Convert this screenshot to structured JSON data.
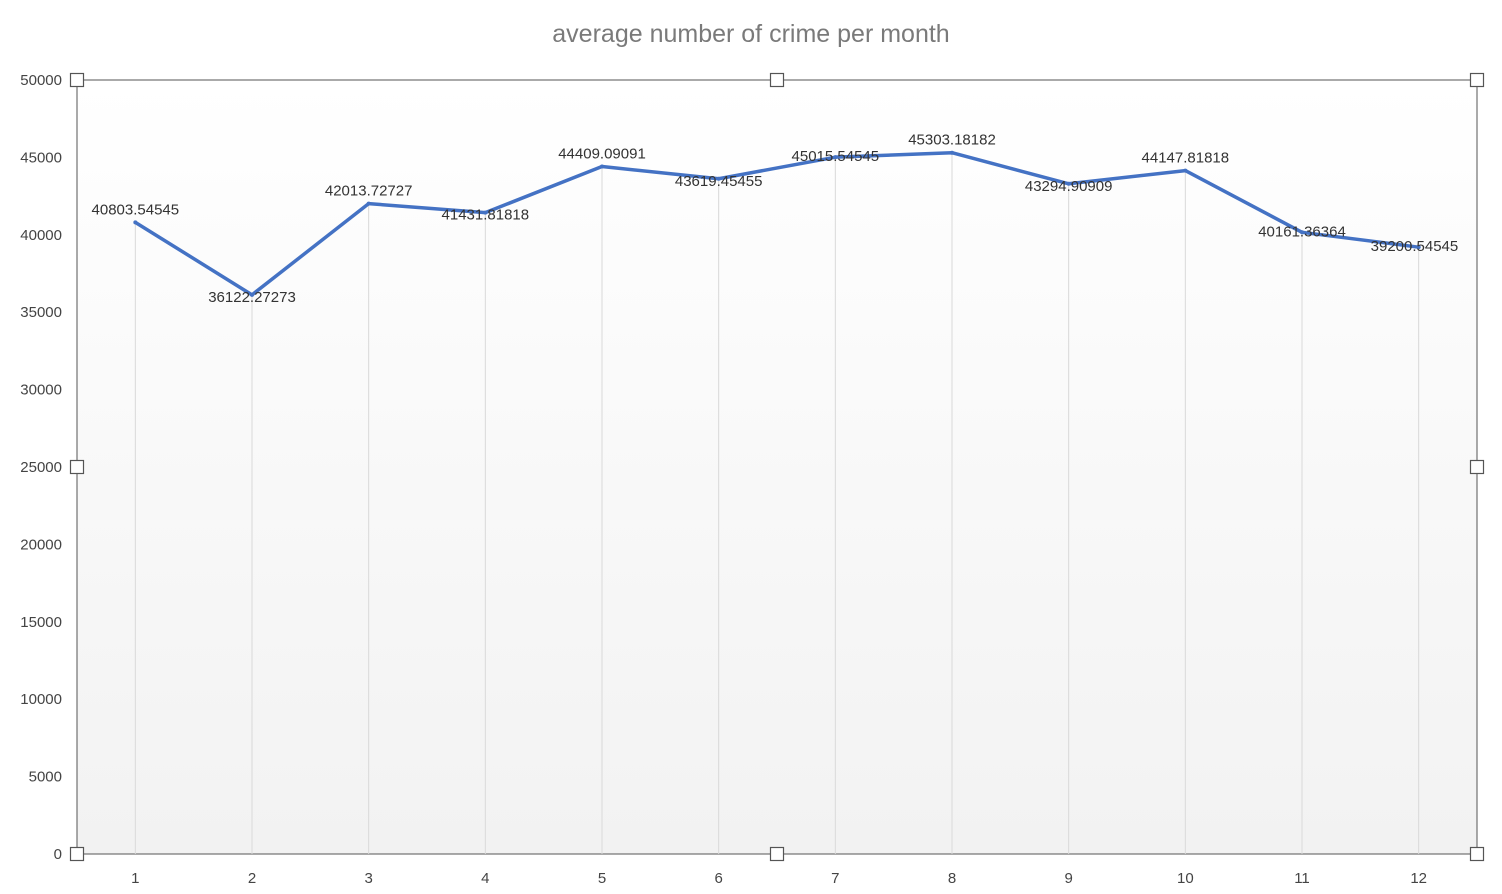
{
  "chart_data": {
    "type": "line",
    "title": "average number of crime per month",
    "xlabel": "",
    "ylabel": "",
    "categories": [
      "1",
      "2",
      "3",
      "4",
      "5",
      "6",
      "7",
      "8",
      "9",
      "10",
      "11",
      "12"
    ],
    "series": [
      {
        "values": [
          40803.54545,
          36122.27273,
          42013.72727,
          41431.81818,
          44409.09091,
          43619.45455,
          45015.54545,
          45303.18182,
          43294.90909,
          44147.81818,
          40161.36364,
          39200.54545
        ],
        "data_labels": [
          "40803.54545",
          "36122.27273",
          "42013.72727",
          "41431.81818",
          "44409.09091",
          "43619.45455",
          "45015.54545",
          "45303.18182",
          "43294.90909",
          "44147.81818",
          "40161.36364",
          "39200.54545"
        ],
        "color": "#4472c4"
      }
    ],
    "y_ticks": [
      "0",
      "5000",
      "10000",
      "15000",
      "20000",
      "25000",
      "30000",
      "35000",
      "40000",
      "45000",
      "50000"
    ],
    "ylim": [
      0,
      50000
    ],
    "grid": "vertical",
    "legend": "none",
    "background_gradient": [
      "#ffffff",
      "#f2f2f2"
    ],
    "gridline_color": "#d9d9d9"
  }
}
